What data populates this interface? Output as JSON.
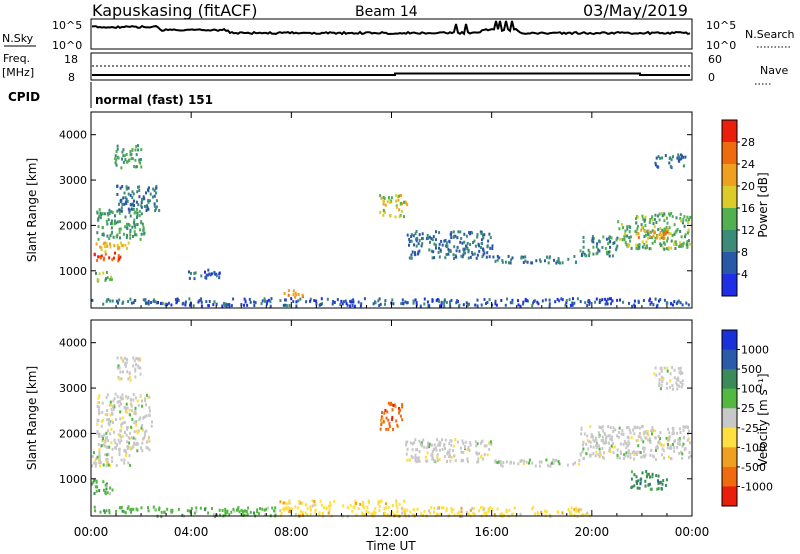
{
  "header": {
    "title": "Kapuskasing (fitACF)",
    "beam": "Beam 14",
    "date": "03/May/2019"
  },
  "top_panels": {
    "nsky_label": "N.Sky",
    "nsky_ticks": [
      "10^5",
      "10^0"
    ],
    "nsearch_label": "N.Search",
    "nsearch_ticks": [
      "10^5",
      "10^0"
    ],
    "freq_label": "Freq.",
    "freq_unit": "[MHz]",
    "freq_ticks": [
      "18",
      "8"
    ],
    "nave_label": "Nave",
    "nave_ticks": [
      "60",
      "0"
    ],
    "cpid_label": "CPID",
    "cpid_value": "normal (fast) 151"
  },
  "colors": {
    "power": [
      "#1f2fe6",
      "#2a58a8",
      "#3c8a78",
      "#52b050",
      "#dccc2a",
      "#f0a020",
      "#f06a10",
      "#ea1e0a"
    ],
    "velocity": [
      "#1a30d8",
      "#2a5aa8",
      "#3a8a5a",
      "#52b840",
      "#c8c8c8",
      "#ffe040",
      "#f0a020",
      "#f06a10",
      "#ea1e0a"
    ]
  },
  "chart_data": [
    {
      "type": "heatmap",
      "name_key": "power",
      "ylabel": "Slant Range [km]",
      "ylim": [
        180,
        4500
      ],
      "yticks": [
        1000,
        2000,
        3000,
        4000
      ],
      "xlim": [
        0,
        24
      ],
      "xticks": [
        "00:00",
        "04:00",
        "08:00",
        "12:00",
        "16:00",
        "20:00",
        "00:00"
      ],
      "colorbar_label": "Power [dB]",
      "colorbar_ticks": [
        "4",
        "8",
        "12",
        "16",
        "20",
        "24",
        "28"
      ],
      "color_range": [
        0,
        32
      ],
      "regions": [
        {
          "t": [
            0.0,
            2.6
          ],
          "r": [
            280,
            420
          ],
          "level": 8
        },
        {
          "t": [
            0.1,
            1.3
          ],
          "r": [
            1250,
            1450
          ],
          "level": 28
        },
        {
          "t": [
            0.0,
            1.5
          ],
          "r": [
            1450,
            1650
          ],
          "level": 20
        },
        {
          "t": [
            0.0,
            0.8
          ],
          "r": [
            800,
            1000
          ],
          "level": 14
        },
        {
          "t": [
            0.2,
            2.1
          ],
          "r": [
            1700,
            2400
          ],
          "level": 12
        },
        {
          "t": [
            1.0,
            2.7
          ],
          "r": [
            2300,
            2900
          ],
          "level": 8
        },
        {
          "t": [
            0.9,
            2.0
          ],
          "r": [
            3300,
            3800
          ],
          "level": 12
        },
        {
          "t": [
            3.8,
            5.2
          ],
          "r": [
            850,
            1050
          ],
          "level": 6
        },
        {
          "t": [
            2.6,
            12.0
          ],
          "r": [
            250,
            420
          ],
          "level": 6
        },
        {
          "t": [
            7.6,
            8.6
          ],
          "r": [
            450,
            600
          ],
          "level": 22
        },
        {
          "t": [
            11.5,
            12.6
          ],
          "r": [
            2200,
            2700
          ],
          "level": 18
        },
        {
          "t": [
            12.6,
            16.0
          ],
          "r": [
            1300,
            1900
          ],
          "level": 8
        },
        {
          "t": [
            16.0,
            19.5
          ],
          "r": [
            1200,
            1350
          ],
          "level": 8
        },
        {
          "t": [
            19.5,
            21.0
          ],
          "r": [
            1350,
            1800
          ],
          "level": 10
        },
        {
          "t": [
            21.0,
            23.9
          ],
          "r": [
            1500,
            2300
          ],
          "level": 14
        },
        {
          "t": [
            21.8,
            23.2
          ],
          "r": [
            1750,
            1950
          ],
          "level": 22
        },
        {
          "t": [
            22.5,
            23.7
          ],
          "r": [
            3300,
            3600
          ],
          "level": 8
        },
        {
          "t": [
            12.0,
            23.9
          ],
          "r": [
            250,
            420
          ],
          "level": 5
        }
      ]
    },
    {
      "type": "heatmap",
      "name_key": "velocity",
      "ylabel": "Slant Range [km]",
      "ylim": [
        180,
        4500
      ],
      "yticks": [
        1000,
        2000,
        3000,
        4000
      ],
      "xlim": [
        0,
        24
      ],
      "xticks": [
        "00:00",
        "04:00",
        "08:00",
        "12:00",
        "16:00",
        "20:00",
        "00:00"
      ],
      "xlabel": "Time UT",
      "colorbar_label": "Velocity [m s⁻¹]",
      "colorbar_ticks": [
        "1000",
        "500",
        "100",
        "25",
        "-25",
        "-100",
        "-500",
        "-1000"
      ],
      "regions": [
        {
          "t": [
            0.0,
            2.6
          ],
          "r": [
            280,
            420
          ],
          "level": 3
        },
        {
          "t": [
            0.0,
            1.6
          ],
          "r": [
            1300,
            1650
          ],
          "level": 4
        },
        {
          "t": [
            0.0,
            0.9
          ],
          "r": [
            700,
            1000
          ],
          "level": 3
        },
        {
          "t": [
            0.2,
            2.4
          ],
          "r": [
            1650,
            2900
          ],
          "level": 4
        },
        {
          "t": [
            1.0,
            2.0
          ],
          "r": [
            3200,
            3700
          ],
          "level": 4
        },
        {
          "t": [
            2.6,
            7.5
          ],
          "r": [
            200,
            400
          ],
          "level": 3
        },
        {
          "t": [
            7.5,
            12.5
          ],
          "r": [
            200,
            550
          ],
          "level": 5
        },
        {
          "t": [
            11.5,
            12.4
          ],
          "r": [
            2100,
            2700
          ],
          "level": 7
        },
        {
          "t": [
            12.0,
            20.0
          ],
          "r": [
            200,
            400
          ],
          "level": 5
        },
        {
          "t": [
            12.5,
            16.0
          ],
          "r": [
            1400,
            1900
          ],
          "level": 4
        },
        {
          "t": [
            16.0,
            19.5
          ],
          "r": [
            1300,
            1450
          ],
          "level": 4
        },
        {
          "t": [
            19.5,
            23.9
          ],
          "r": [
            1450,
            2200
          ],
          "level": 4
        },
        {
          "t": [
            21.5,
            23.0
          ],
          "r": [
            800,
            1200
          ],
          "level": 2
        },
        {
          "t": [
            22.4,
            23.6
          ],
          "r": [
            3000,
            3500
          ],
          "level": 4
        }
      ]
    }
  ]
}
